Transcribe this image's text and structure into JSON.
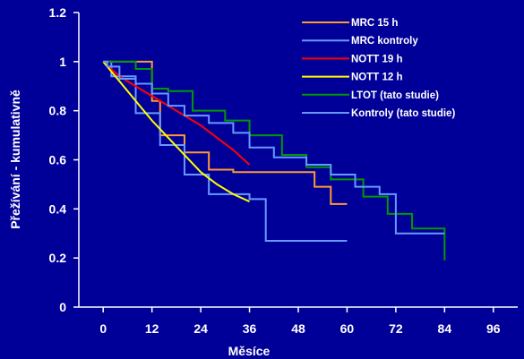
{
  "chart_data": {
    "type": "line",
    "xlabel": "Měsíce",
    "ylabel": "Přežívání - kumulativně",
    "xlim": [
      -6,
      102
    ],
    "ylim": [
      0,
      1.2
    ],
    "x_ticks": [
      0,
      12,
      24,
      36,
      48,
      60,
      72,
      84,
      96
    ],
    "y_ticks": [
      0,
      0.2,
      0.4,
      0.6,
      0.8,
      1,
      1.2
    ],
    "y_tick_labels": [
      "0",
      "0.2",
      "0.4",
      "0.6",
      "0.8",
      "1",
      "1.2"
    ],
    "legend_placement": "top-right",
    "series": [
      {
        "name": "MRC 15 h",
        "color": "#ff9933",
        "step": true,
        "x": [
          0,
          12,
          14,
          20,
          26,
          32,
          52,
          56,
          60
        ],
        "y": [
          1.0,
          0.84,
          0.7,
          0.63,
          0.56,
          0.55,
          0.49,
          0.42,
          0.42
        ]
      },
      {
        "name": "MRC kontroly",
        "color": "#6699ff",
        "step": true,
        "x": [
          0,
          2,
          8,
          14,
          20,
          26,
          36,
          40,
          60
        ],
        "y": [
          1.0,
          0.94,
          0.79,
          0.66,
          0.54,
          0.46,
          0.44,
          0.27,
          0.27
        ]
      },
      {
        "name": "NOTT 19 h",
        "color": "#ff0000",
        "step": false,
        "x": [
          0,
          4,
          8,
          12,
          16,
          20,
          24,
          28,
          32,
          36
        ],
        "y": [
          1.0,
          0.94,
          0.9,
          0.86,
          0.82,
          0.78,
          0.74,
          0.69,
          0.64,
          0.58
        ]
      },
      {
        "name": "NOTT 12 h",
        "color": "#ffff00",
        "step": false,
        "x": [
          0,
          4,
          8,
          12,
          16,
          20,
          24,
          28,
          32,
          36
        ],
        "y": [
          1.0,
          0.92,
          0.84,
          0.76,
          0.69,
          0.62,
          0.55,
          0.5,
          0.46,
          0.43
        ]
      },
      {
        "name": "LTOT (tato studie)",
        "color": "#009900",
        "step": true,
        "x": [
          0,
          8,
          12,
          16,
          22,
          30,
          36,
          44,
          50,
          56,
          64,
          70,
          76,
          84
        ],
        "y": [
          1.0,
          0.97,
          0.89,
          0.88,
          0.8,
          0.76,
          0.7,
          0.62,
          0.57,
          0.52,
          0.45,
          0.38,
          0.32,
          0.19
        ]
      },
      {
        "name": "Kontroly (tato studie)",
        "color": "#6699ff",
        "step": true,
        "x": [
          0,
          1,
          4,
          8,
          12,
          16,
          20,
          26,
          32,
          36,
          42,
          50,
          56,
          62,
          68,
          72,
          84
        ],
        "y": [
          1.0,
          0.98,
          0.93,
          0.91,
          0.87,
          0.82,
          0.78,
          0.75,
          0.71,
          0.65,
          0.61,
          0.58,
          0.54,
          0.49,
          0.46,
          0.3,
          0.3
        ]
      }
    ]
  }
}
